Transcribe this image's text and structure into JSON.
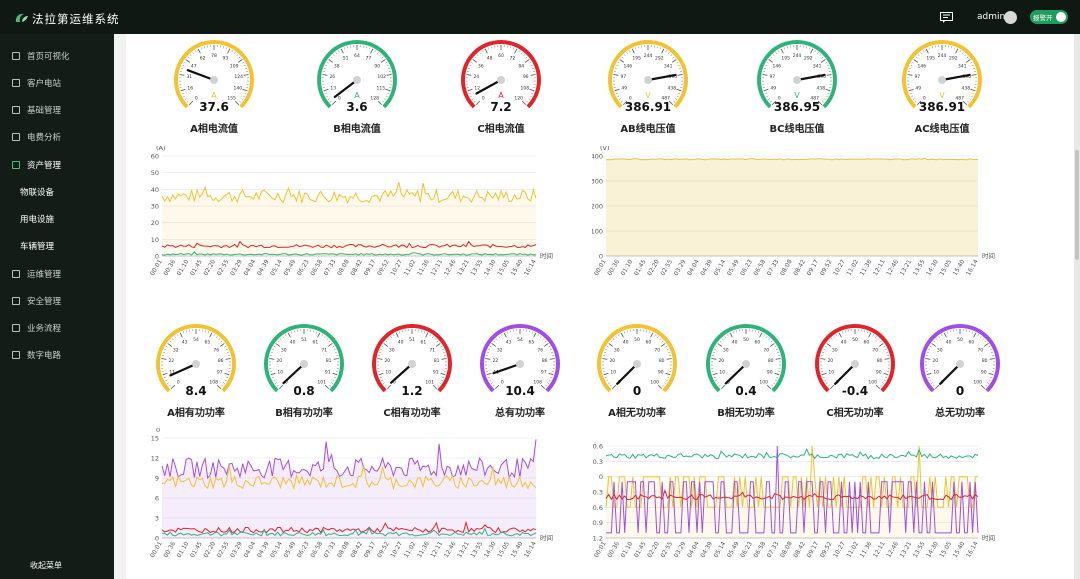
{
  "app": {
    "title": "法拉第运维系统",
    "user": "admin",
    "alarm_label": "报警开"
  },
  "sidebar": {
    "items": [
      {
        "label": "首页可视化",
        "icon": "chart-icon"
      },
      {
        "label": "客户电站",
        "icon": "station-icon"
      },
      {
        "label": "基础管理",
        "icon": "base-icon"
      },
      {
        "label": "电费分析",
        "icon": "bill-icon"
      },
      {
        "label": "资产管理",
        "icon": "asset-icon"
      }
    ],
    "subitems": [
      {
        "label": "物联设备"
      },
      {
        "label": "用电设施"
      },
      {
        "label": "车辆管理"
      }
    ],
    "items2": [
      {
        "label": "运维管理",
        "icon": "ops-icon"
      },
      {
        "label": "安全管理",
        "icon": "shield-icon"
      },
      {
        "label": "业务流程",
        "icon": "flow-icon"
      },
      {
        "label": "数字电路",
        "icon": "circuit-icon"
      }
    ],
    "collapse_label": "收起菜单"
  },
  "gauges_top": [
    {
      "name": "A相电流值",
      "value": "37.6",
      "unit": "A",
      "max": 155,
      "reading": 37.6,
      "color": "#f2c230"
    },
    {
      "name": "B相电流值",
      "value": "3.6",
      "unit": "A",
      "max": 128,
      "reading": 3.6,
      "color": "#2fb37b"
    },
    {
      "name": "C相电流值",
      "value": "7.2",
      "unit": "A",
      "max": 120,
      "reading": 7.2,
      "color": "#e0242a"
    },
    {
      "name": "AB线电压值",
      "value": "386.91",
      "unit": "V",
      "max": 487,
      "reading": 386.91,
      "color": "#f2c230"
    },
    {
      "name": "BC线电压值",
      "value": "386.95",
      "unit": "V",
      "max": 487,
      "reading": 386.95,
      "color": "#2fb37b"
    },
    {
      "name": "AC线电压值",
      "value": "386.91",
      "unit": "V",
      "max": 487,
      "reading": 386.91,
      "color": "#f2c230"
    }
  ],
  "gauges_bottom": [
    {
      "name": "A相有功功率",
      "value": "8.4",
      "unit": "",
      "max": 108,
      "reading": 8.4,
      "color": "#f2c230"
    },
    {
      "name": "B相有功功率",
      "value": "0.8",
      "unit": "",
      "max": 101,
      "reading": 0.8,
      "color": "#2fb37b"
    },
    {
      "name": "C相有功功率",
      "value": "1.2",
      "unit": "",
      "max": 101,
      "reading": 1.2,
      "color": "#e0242a"
    },
    {
      "name": "总有功功率",
      "value": "10.4",
      "unit": "",
      "max": 108,
      "reading": 10.4,
      "color": "#a24ee6"
    },
    {
      "name": "A相无功功率",
      "value": "0",
      "unit": "",
      "max": 100,
      "reading": 0,
      "color": "#f2c230"
    },
    {
      "name": "B相无功功率",
      "value": "0.4",
      "unit": "",
      "max": 100,
      "reading": 0.4,
      "color": "#2fb37b"
    },
    {
      "name": "C相无功功率",
      "value": "-0.4",
      "unit": "",
      "max": 100,
      "reading": 0,
      "color": "#e0242a"
    },
    {
      "name": "总无功功率",
      "value": "0",
      "unit": "",
      "max": 100,
      "reading": 0,
      "color": "#a24ee6"
    }
  ],
  "time_labels": [
    "00:01",
    "00:36",
    "01:10",
    "01:45",
    "02:20",
    "02:55",
    "03:29",
    "04:04",
    "04:39",
    "05:14",
    "05:49",
    "06:23",
    "06:58",
    "07:33",
    "08:08",
    "08:42",
    "09:17",
    "09:52",
    "10:27",
    "11:02",
    "11:36",
    "12:11",
    "12:46",
    "13:21",
    "13:55",
    "14:30",
    "15:05",
    "15:40",
    "16:14"
  ],
  "chart_data": [
    {
      "type": "line",
      "unit": "(A)",
      "xlabel": "时间",
      "ylim": [
        0,
        60
      ],
      "yticks": [
        0,
        10,
        20,
        30,
        40,
        50,
        60
      ],
      "series": [
        {
          "color": "#f2c230",
          "base": 36,
          "amp": 4
        },
        {
          "color": "#e0242a",
          "base": 6,
          "amp": 1
        },
        {
          "color": "#2fb37b",
          "base": 1,
          "amp": 0.5
        }
      ]
    },
    {
      "type": "area",
      "unit": "(V)",
      "xlabel": "时间",
      "ylim": [
        0,
        400
      ],
      "yticks": [
        0,
        100,
        200,
        300,
        400
      ],
      "series": [
        {
          "color": "#e6c24a",
          "base": 387,
          "amp": 2
        }
      ]
    },
    {
      "type": "line",
      "unit": "0",
      "xlabel": "时间",
      "ylim": [
        0,
        15
      ],
      "yticks": [
        0,
        3,
        6,
        9,
        12,
        15
      ],
      "series": [
        {
          "color": "#a24ee6",
          "base": 10.5,
          "amp": 1.5
        },
        {
          "color": "#f2c230",
          "base": 8.4,
          "amp": 1
        },
        {
          "color": "#e0242a",
          "base": 1.2,
          "amp": 0.4
        },
        {
          "color": "#2fb37b",
          "base": 0.6,
          "amp": 0.3
        }
      ]
    },
    {
      "type": "line",
      "unit": "",
      "xlabel": "时间",
      "ylim": [
        -1.2,
        0.6
      ],
      "yticks": [
        -1.2,
        -0.9,
        -0.6,
        -0.3,
        0,
        0.3,
        0.6
      ],
      "series": [
        {
          "color": "#f2c230",
          "base": -0.3,
          "amp": 0.3
        },
        {
          "color": "#a24ee6",
          "base": -0.6,
          "amp": 0.5
        },
        {
          "color": "#e0242a",
          "base": -0.4,
          "amp": 0.05
        },
        {
          "color": "#2fb37b",
          "base": 0.4,
          "amp": 0.05
        }
      ]
    }
  ]
}
